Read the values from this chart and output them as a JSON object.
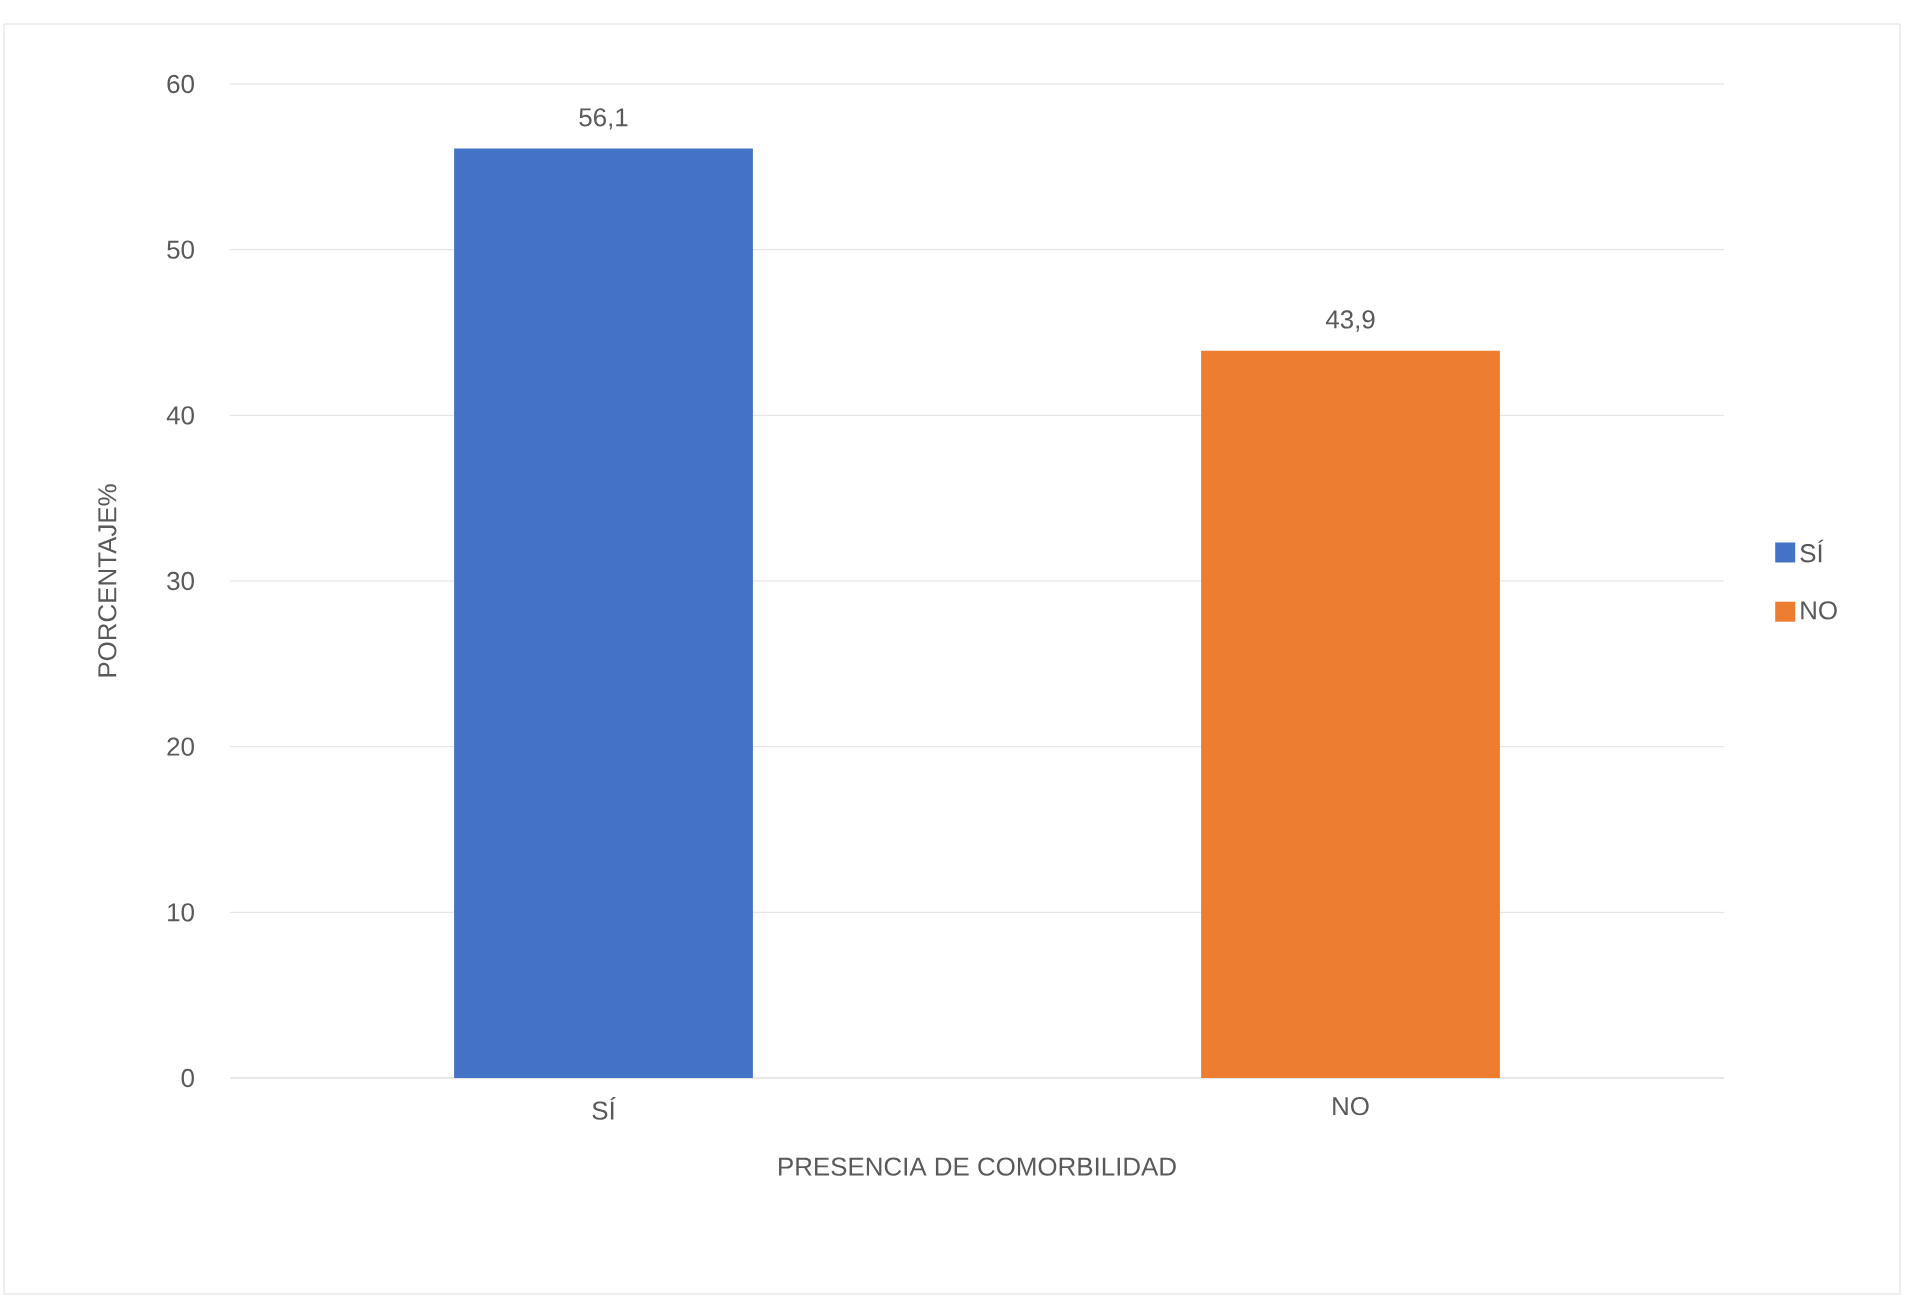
{
  "chart_data": {
    "type": "bar",
    "xlabel": "PRESENCIA DE COMORBILIDAD",
    "ylabel": "PORCENTAJE%",
    "categories": [
      "SÍ",
      "NO"
    ],
    "series": [
      {
        "name": "SÍ",
        "color": "#4472c4",
        "values": [
          56.1,
          null
        ],
        "value_labels": [
          "56,1",
          null
        ]
      },
      {
        "name": "NO",
        "color": "#ed7d31",
        "values": [
          null,
          43.9
        ],
        "value_labels": [
          null,
          "43,9"
        ]
      }
    ],
    "ylim": [
      0,
      60
    ],
    "yticks": [
      0,
      10,
      20,
      30,
      40,
      50,
      60
    ],
    "grid": "y",
    "legend": "right"
  }
}
